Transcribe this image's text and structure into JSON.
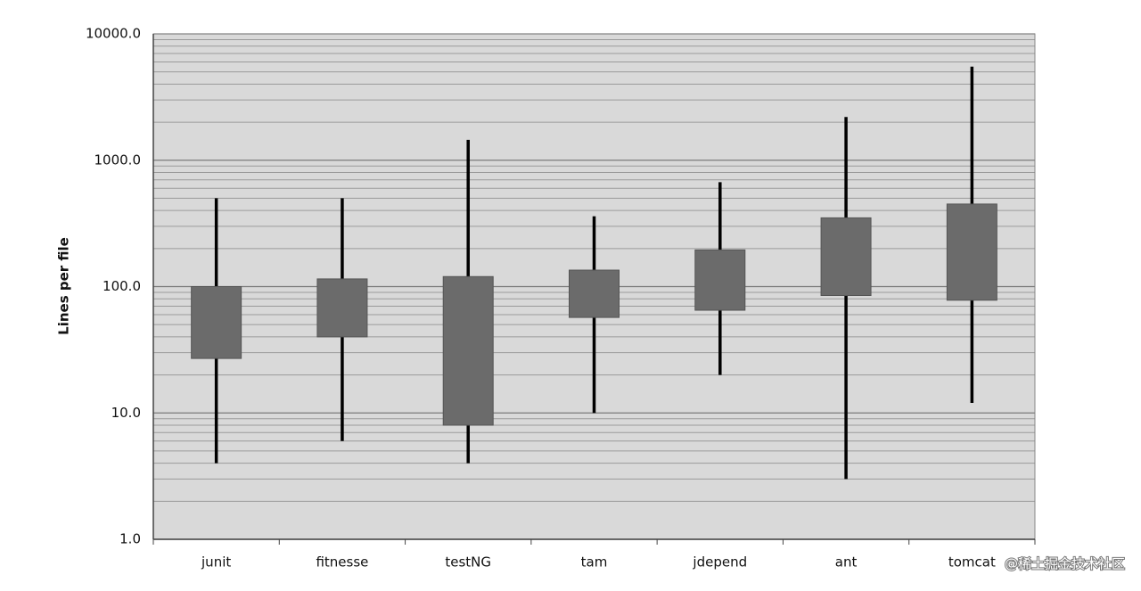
{
  "chart_data": {
    "type": "range-box",
    "y_label": "Lines per file",
    "categories": [
      "junit",
      "fitnesse",
      "testNG",
      "tam",
      "jdepend",
      "ant",
      "tomcat"
    ],
    "low": [
      4,
      6,
      4,
      10,
      20,
      3,
      12
    ],
    "box_low": [
      27,
      40,
      8,
      57,
      65,
      85,
      78
    ],
    "box_high": [
      100,
      115,
      120,
      135,
      195,
      350,
      450
    ],
    "high": [
      500,
      500,
      1450,
      360,
      670,
      2200,
      5500
    ],
    "box_color": "#6b6b6b",
    "whisker_color": "#000000",
    "ylim": [
      1,
      10000
    ],
    "yticks": [
      {
        "value": 1,
        "label": "1.0"
      },
      {
        "value": 10,
        "label": "10.0"
      },
      {
        "value": 100,
        "label": "100.0"
      },
      {
        "value": 1000,
        "label": "1000.0"
      },
      {
        "value": 10000,
        "label": "10000.0"
      }
    ],
    "log_scale": true,
    "grid": true,
    "minor_grid": true,
    "watermark": "@稀土掘金技术社区"
  }
}
